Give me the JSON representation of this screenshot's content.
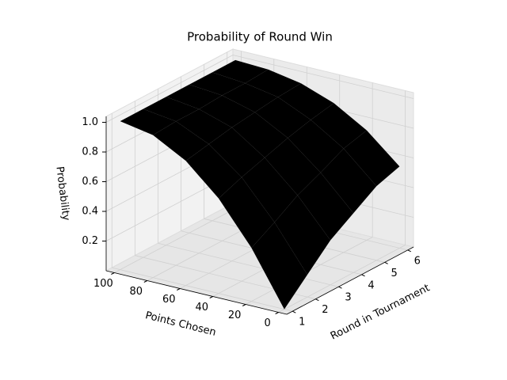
{
  "chart_data": {
    "type": "surface3d",
    "title": "Probability of Round Win",
    "xlabel": "Points Chosen",
    "ylabel": "Round in Tournament",
    "zlabel": "Probability",
    "x": [
      0,
      20,
      40,
      60,
      80,
      100
    ],
    "y": [
      1,
      2,
      3,
      4,
      5,
      6
    ],
    "z": [
      [
        0,
        0.36,
        0.64,
        0.84,
        0.96,
        1.0
      ],
      [
        0.15,
        0.45,
        0.7,
        0.87,
        0.97,
        1.0
      ],
      [
        0.3,
        0.55,
        0.75,
        0.9,
        0.97,
        1.0
      ],
      [
        0.4,
        0.62,
        0.8,
        0.92,
        0.98,
        1.0
      ],
      [
        0.5,
        0.7,
        0.84,
        0.94,
        0.98,
        1.0
      ],
      [
        0.55,
        0.74,
        0.87,
        0.95,
        0.99,
        1.0
      ]
    ],
    "xlim": [
      -5,
      105
    ],
    "ylim": [
      0.75,
      6.25
    ],
    "zlim": [
      0,
      1.04
    ],
    "xticks": [
      0,
      20,
      40,
      60,
      80,
      100
    ],
    "yticks": [
      1,
      2,
      3,
      4,
      5,
      6
    ],
    "zticks": [
      0.2,
      0.4,
      0.6,
      0.8,
      {
        "value": 1.0,
        "label": "1.0"
      }
    ],
    "colormap": "terrain",
    "grid": true
  }
}
